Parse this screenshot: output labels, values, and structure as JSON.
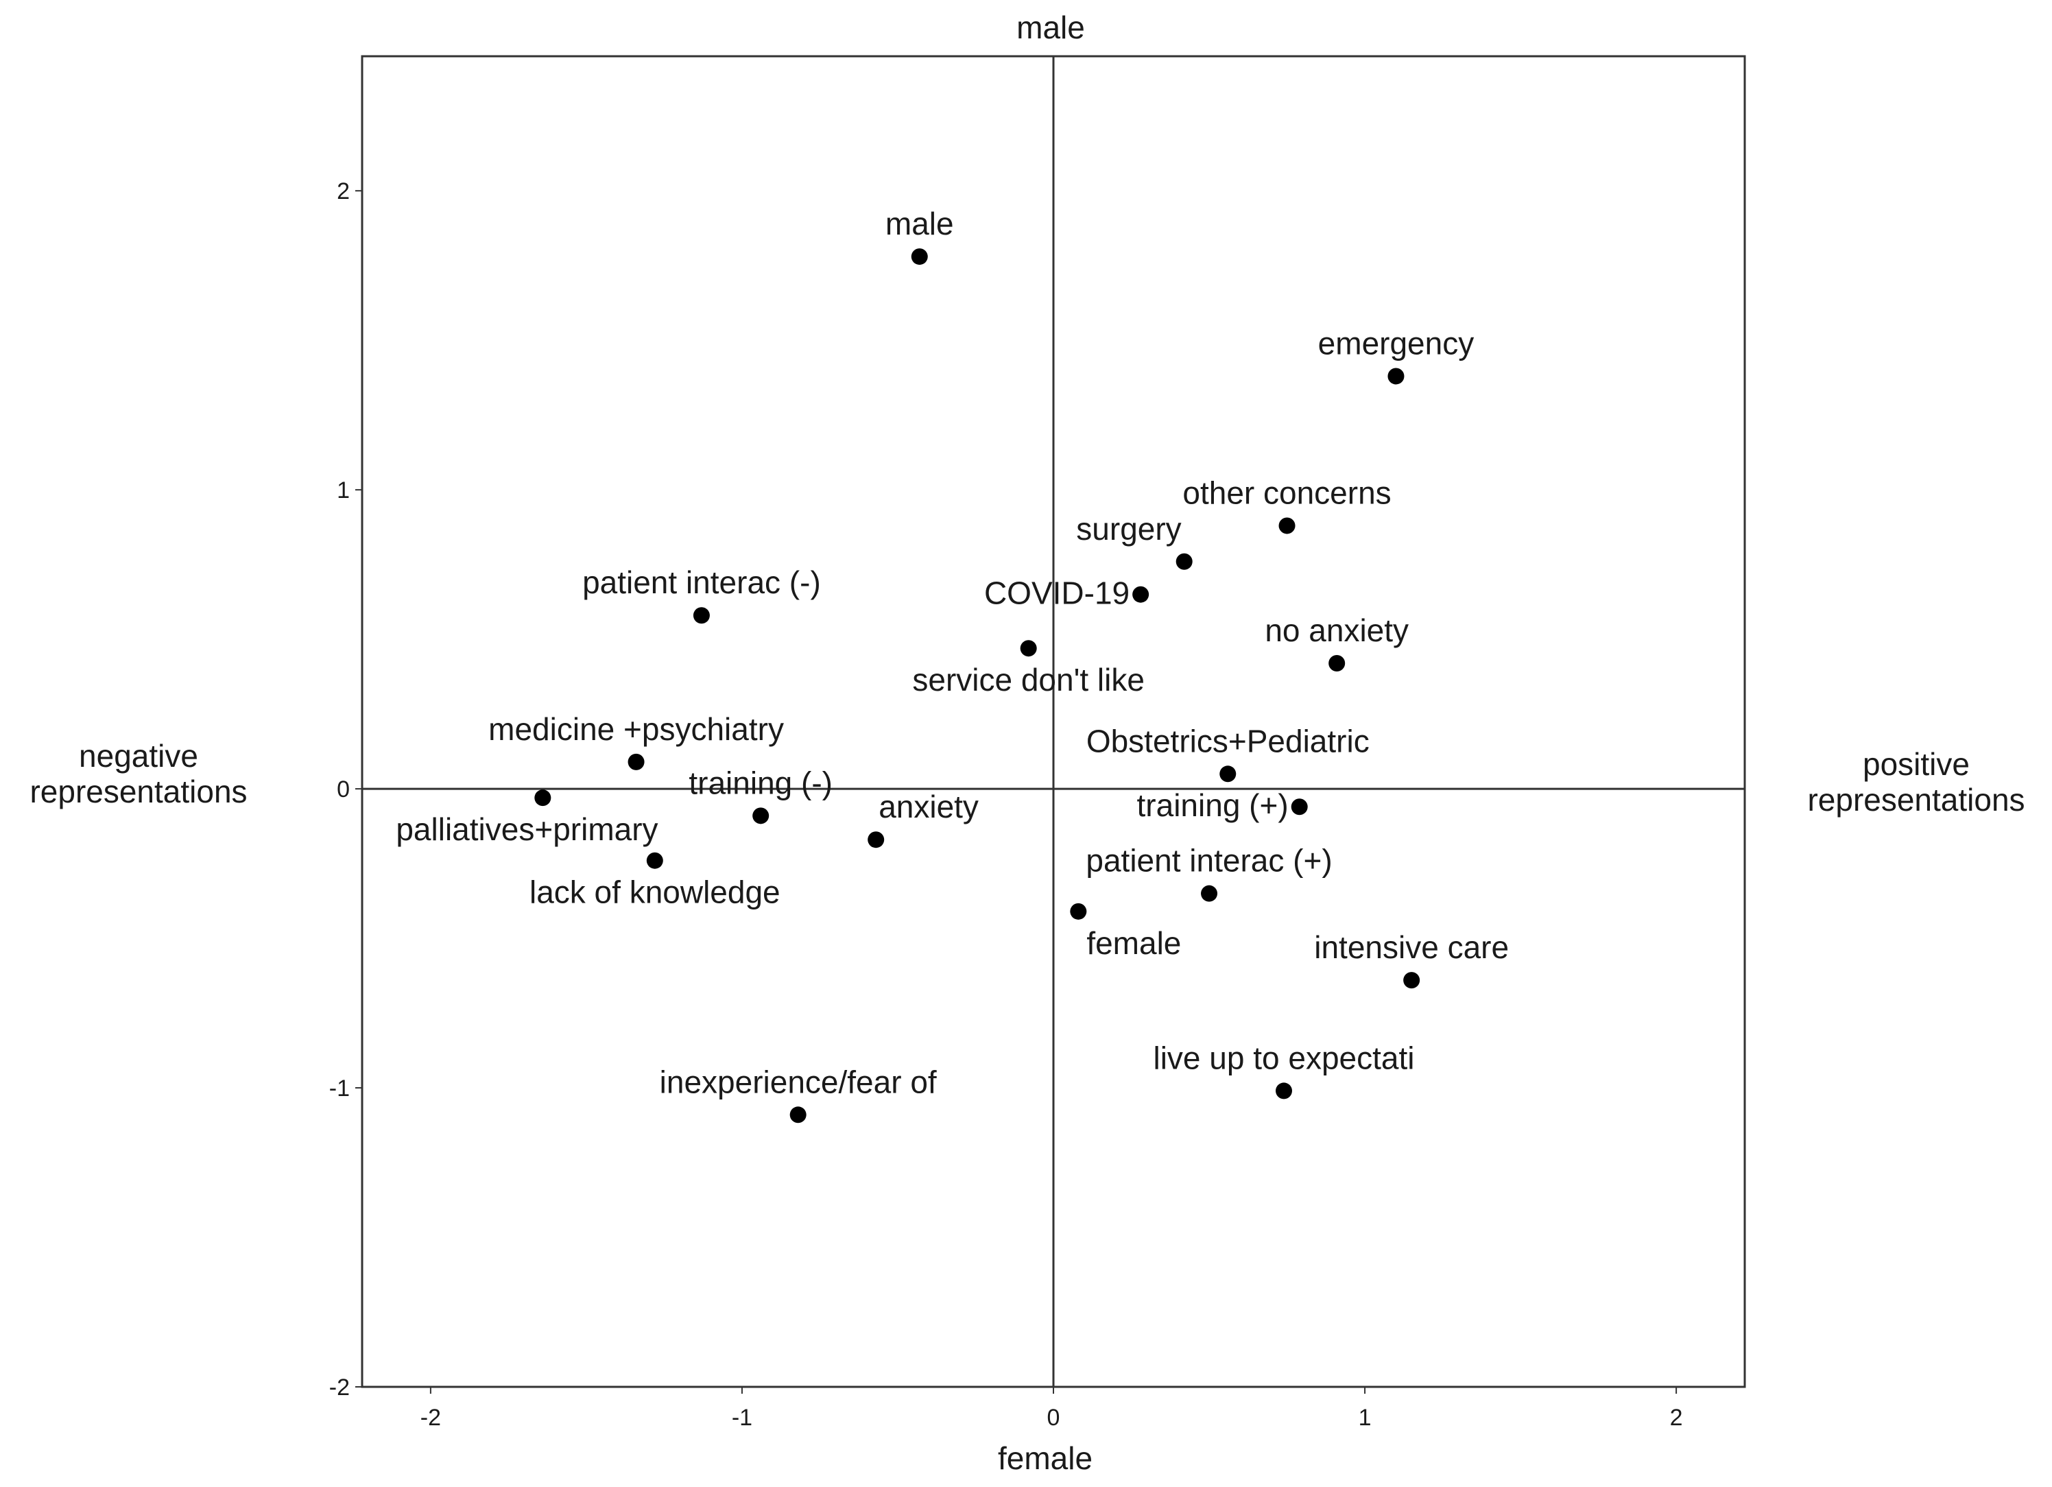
{
  "chart_data": {
    "type": "scatter",
    "axis_titles": {
      "top": "male",
      "bottom": "female",
      "left": [
        "negative",
        "representations"
      ],
      "right": [
        "positive",
        "representations"
      ]
    },
    "xlim": [
      -2.22,
      2.22
    ],
    "ylim": [
      -2.0,
      2.45
    ],
    "x_ticks": [
      -2,
      -1,
      0,
      1,
      2
    ],
    "y_ticks": [
      -2,
      -1,
      0,
      1,
      2
    ],
    "x_tick_labels": [
      "-2",
      "-1",
      "0",
      "1",
      "2"
    ],
    "y_tick_labels": [
      "-2",
      "-1",
      "0",
      "1",
      "2"
    ],
    "reference_lines": {
      "x": 0,
      "y": 0
    },
    "grid": false,
    "points": [
      {
        "label": "male",
        "x": -0.43,
        "y": 1.78,
        "label_pos": "above"
      },
      {
        "label": "emergency",
        "x": 1.1,
        "y": 1.38,
        "label_pos": "above"
      },
      {
        "label": "other concerns",
        "x": 0.75,
        "y": 0.88,
        "label_pos": "above"
      },
      {
        "label": "surgery",
        "x": 0.42,
        "y": 0.76,
        "label_pos": "above-left"
      },
      {
        "label": "COVID-19",
        "x": 0.28,
        "y": 0.65,
        "label_pos": "left"
      },
      {
        "label": "patient interac (-)",
        "x": -1.13,
        "y": 0.58,
        "label_pos": "above"
      },
      {
        "label": "service don't like",
        "x": -0.08,
        "y": 0.47,
        "label_pos": "below"
      },
      {
        "label": "no anxiety",
        "x": 0.91,
        "y": 0.42,
        "label_pos": "above"
      },
      {
        "label": "medicine +psychiatry",
        "x": -1.34,
        "y": 0.09,
        "label_pos": "above"
      },
      {
        "label": "Obstetrics+Pediatric",
        "x": 0.56,
        "y": 0.05,
        "label_pos": "above"
      },
      {
        "label": "palliatives+primary",
        "x": -1.64,
        "y": -0.03,
        "label_pos": "below-right"
      },
      {
        "label": "training (-)",
        "x": -0.94,
        "y": -0.09,
        "label_pos": "above"
      },
      {
        "label": "training (+)",
        "x": 0.79,
        "y": -0.06,
        "label_pos": "left"
      },
      {
        "label": "anxiety",
        "x": -0.57,
        "y": -0.17,
        "label_pos": "above-right"
      },
      {
        "label": "lack of knowledge",
        "x": -1.28,
        "y": -0.24,
        "label_pos": "below"
      },
      {
        "label": "patient interac (+)",
        "x": 0.5,
        "y": -0.35,
        "label_pos": "above"
      },
      {
        "label": "female",
        "x": 0.08,
        "y": -0.41,
        "label_pos": "below-right"
      },
      {
        "label": "intensive care",
        "x": 1.15,
        "y": -0.64,
        "label_pos": "above"
      },
      {
        "label": "live up to expectati",
        "x": 0.74,
        "y": -1.01,
        "label_pos": "above"
      },
      {
        "label": "inexperience/fear of",
        "x": -0.82,
        "y": -1.09,
        "label_pos": "above"
      }
    ]
  }
}
